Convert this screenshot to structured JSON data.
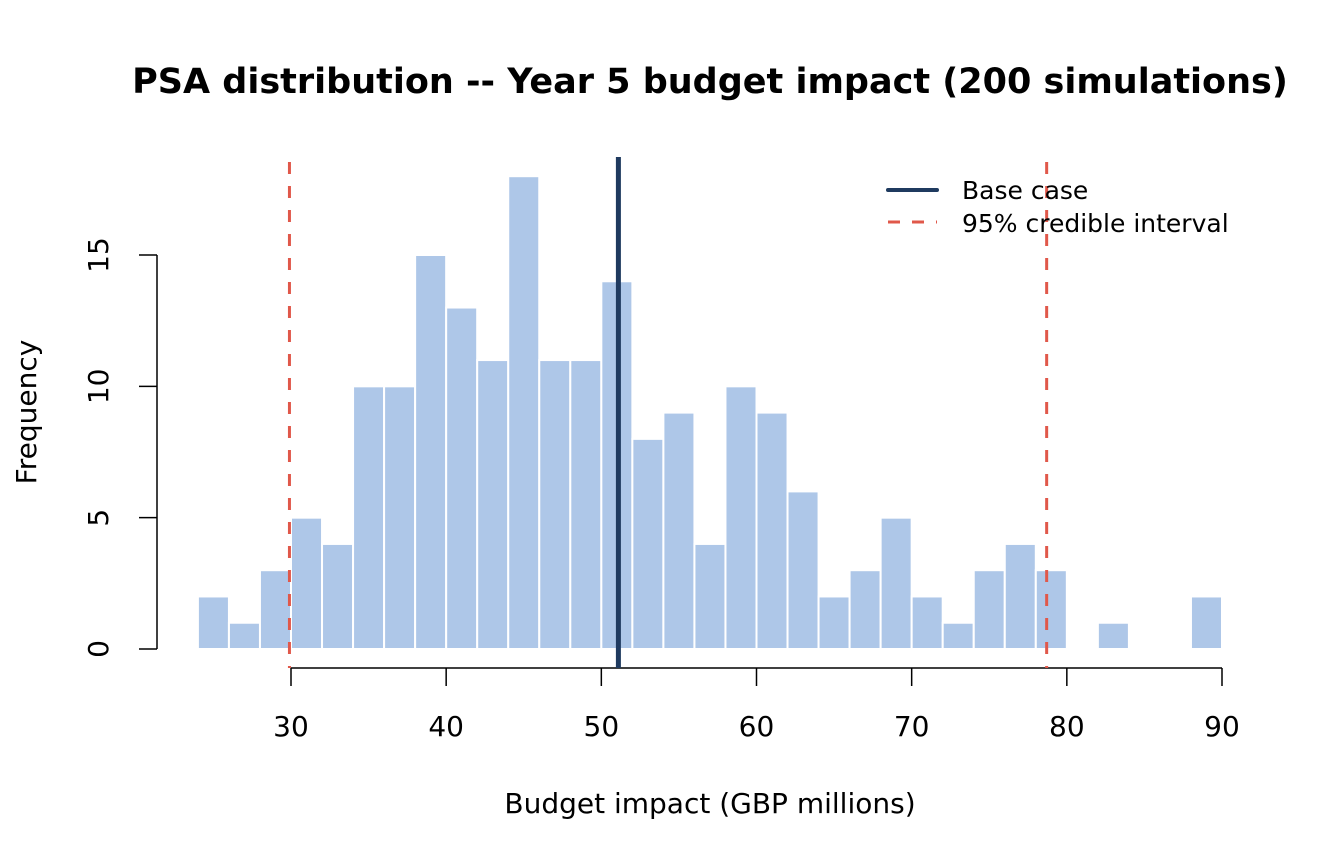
{
  "chart_data": {
    "type": "bar",
    "title": "PSA distribution -- Year 5 budget impact (200 simulations)",
    "xlabel": "Budget impact (GBP millions)",
    "ylabel": "Frequency",
    "bin_width": 2,
    "bin_starts": [
      24,
      26,
      28,
      30,
      32,
      34,
      36,
      38,
      40,
      42,
      44,
      46,
      48,
      50,
      52,
      54,
      56,
      58,
      60,
      62,
      64,
      66,
      68,
      70,
      72,
      74,
      76,
      78,
      80,
      82,
      84,
      86,
      88
    ],
    "values": [
      2,
      1,
      3,
      5,
      4,
      10,
      10,
      15,
      13,
      11,
      18,
      11,
      11,
      14,
      8,
      9,
      4,
      10,
      9,
      6,
      2,
      3,
      5,
      2,
      1,
      3,
      4,
      3,
      0,
      1,
      0,
      0,
      2
    ],
    "xlim": [
      24,
      90
    ],
    "ylim": [
      0,
      18
    ],
    "xticks": [
      "30",
      "40",
      "50",
      "60",
      "70",
      "80",
      "90"
    ],
    "yticks": [
      "0",
      "5",
      "10",
      "15"
    ],
    "grid": false,
    "bar_color": "#aec7e8",
    "reference_lines": [
      {
        "name": "Base case",
        "x": 51.1,
        "color": "#1f3a5f",
        "style": "solid"
      },
      {
        "name": "95% credible interval",
        "x": 29.9,
        "color": "#e0584a",
        "style": "dashed"
      },
      {
        "name": "95% credible interval",
        "x": 78.7,
        "color": "#e0584a",
        "style": "dashed"
      }
    ],
    "legend": {
      "position": "top-right",
      "entries": [
        "Base case",
        "95% credible interval"
      ]
    }
  }
}
